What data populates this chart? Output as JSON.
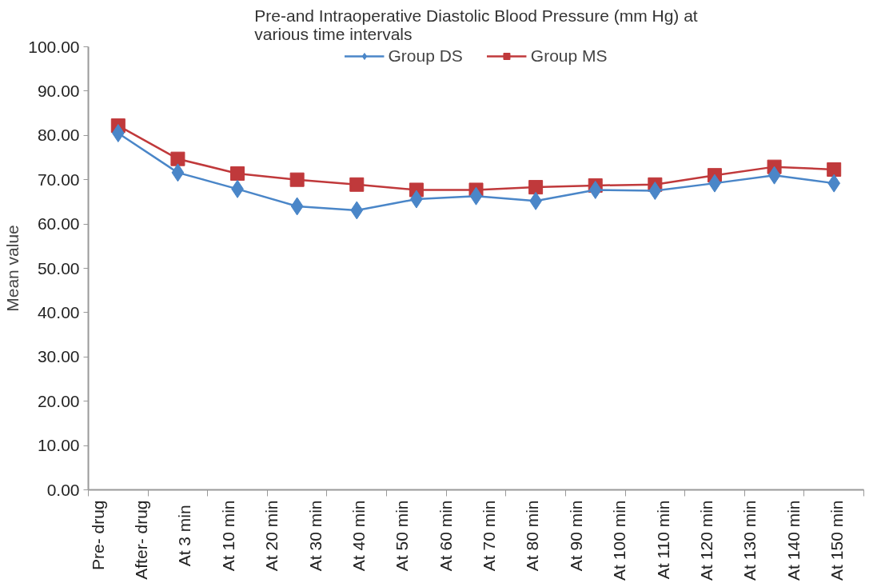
{
  "chart_data": {
    "type": "line",
    "title": "Pre-and Intraoperative Diastolic Blood Pressure (mm Hg) at various time intervals",
    "ylabel": "Mean value",
    "categories": [
      null,
      null,
      null,
      null,
      null,
      null,
      null,
      null,
      null,
      null,
      null,
      null,
      null
    ],
    "annotations": [
      "Pre- drug",
      "After- drug",
      "At 3  min",
      "At 10 min",
      "At 20 min",
      "At 30 min",
      "At 40 min",
      "At 50 min",
      "At 60 min",
      "At 70 min",
      "At 80 min",
      "At 90 min",
      "At 100 min",
      "At 110 min",
      "At 120 min",
      "At 130 min",
      "At 140 min",
      "At 150 min"
    ],
    "series": [
      {
        "name": "Group DS",
        "color": "#4a86c8",
        "marker": "diamond",
        "values": [
          80.5,
          71.6,
          67.9,
          64.0,
          63.1,
          65.6,
          66.3,
          65.2,
          67.7,
          67.5,
          69.2,
          71.0,
          69.2
        ]
      },
      {
        "name": "Group MS",
        "color": "#c0393b",
        "marker": "square",
        "values": [
          82.2,
          74.7,
          71.4,
          70.0,
          68.9,
          67.7,
          67.7,
          68.3,
          68.7,
          68.9,
          71.0,
          72.9,
          72.3
        ]
      }
    ],
    "ylim": [
      0,
      100
    ],
    "yticks": [
      {
        "value": 0,
        "label": "0.00"
      },
      {
        "value": 10,
        "label": "10.00"
      },
      {
        "value": 20,
        "label": "20.00"
      },
      {
        "value": 30,
        "label": "30.00"
      },
      {
        "value": 40,
        "label": "40.00"
      },
      {
        "value": 50,
        "label": "50.00"
      },
      {
        "value": 60,
        "label": "60.00"
      },
      {
        "value": 70,
        "label": "70.00"
      },
      {
        "value": 80,
        "label": "80.00"
      },
      {
        "value": 90,
        "label": "90.00"
      },
      {
        "value": 100,
        "label": "100.00"
      }
    ],
    "grid": false,
    "legend": "top",
    "line_style": "solid"
  }
}
